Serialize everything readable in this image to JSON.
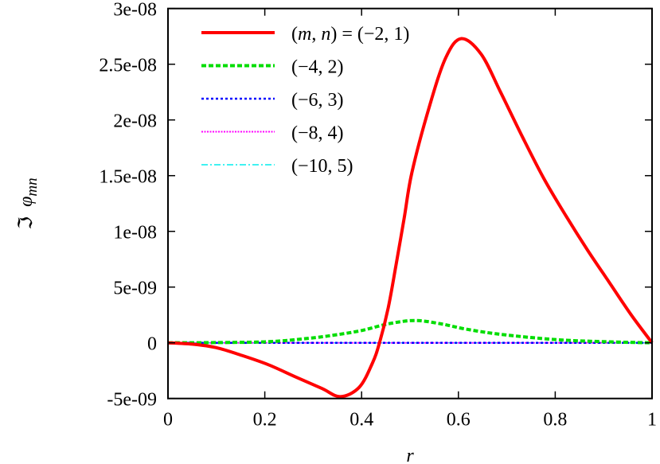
{
  "chart_data": {
    "type": "line",
    "xlabel": "r",
    "ylabel": {
      "prefix": "ℑ",
      "symbol": "φ",
      "subscript": "mn"
    },
    "xlim": [
      0,
      1
    ],
    "ylim": [
      -5e-09,
      3e-08
    ],
    "xticks": [
      {
        "value": 0,
        "label": "0"
      },
      {
        "value": 0.2,
        "label": "0.2"
      },
      {
        "value": 0.4,
        "label": "0.4"
      },
      {
        "value": 0.6,
        "label": "0.6"
      },
      {
        "value": 0.8,
        "label": "0.8"
      },
      {
        "value": 1,
        "label": "1"
      }
    ],
    "yticks": [
      {
        "value": -5e-09,
        "label": "-5e-09"
      },
      {
        "value": 0,
        "label": "0"
      },
      {
        "value": 5e-09,
        "label": "5e-09"
      },
      {
        "value": 1e-08,
        "label": "1e-08"
      },
      {
        "value": 1.5e-08,
        "label": "1.5e-08"
      },
      {
        "value": 2e-08,
        "label": "2e-08"
      },
      {
        "value": 2.5e-08,
        "label": "2.5e-08"
      },
      {
        "value": 3e-08,
        "label": "3e-08"
      }
    ],
    "grid": false,
    "legend_placement": "top-left",
    "series": [
      {
        "name": "(m, n) = (−2, 1)",
        "legend_parts": {
          "open": "(",
          "m": "m",
          "comma": ", ",
          "n": "n",
          "rest": ") = (−2, 1)"
        },
        "color": "#ff0000",
        "style": "solid",
        "x": [
          0,
          0.05,
          0.099,
          0.153,
          0.208,
          0.263,
          0.318,
          0.356,
          0.395,
          0.422,
          0.437,
          0.455,
          0.471,
          0.488,
          0.504,
          0.54,
          0.574,
          0.606,
          0.647,
          0.687,
          0.732,
          0.777,
          0.822,
          0.867,
          0.912,
          0.957,
          1
        ],
        "y": [
          0,
          -1.2e-10,
          -4.3e-10,
          -1.14e-09,
          -1.98e-09,
          -3.05e-09,
          -4.1e-09,
          -4.83e-09,
          -4e-09,
          -1.86e-09,
          0,
          3.14e-09,
          6.95e-09,
          1.12e-08,
          1.53e-08,
          2.12e-08,
          2.56e-08,
          2.73e-08,
          2.59e-08,
          2.25e-08,
          1.85e-08,
          1.47e-08,
          1.14e-08,
          8.3e-09,
          5.4e-09,
          2.5e-09,
          0
        ]
      },
      {
        "name": "(−4, 2)",
        "color": "#00dd00",
        "style": "dashed",
        "x": [
          0,
          0.1,
          0.208,
          0.29,
          0.345,
          0.4,
          0.455,
          0.51,
          0.564,
          0.614,
          0.687,
          0.8,
          0.9,
          1
        ],
        "y": [
          0,
          2e-11,
          1e-10,
          4e-10,
          7e-10,
          1.1e-09,
          1.7e-09,
          2e-09,
          1.7e-09,
          1.24e-09,
          7.6e-10,
          2.9e-10,
          1e-10,
          0
        ]
      },
      {
        "name": "(−6, 3)",
        "color": "#0000ff",
        "style": "dotted",
        "x": [
          0,
          1
        ],
        "y": [
          0,
          0
        ]
      },
      {
        "name": "(−8, 4)",
        "color": "#ff00ff",
        "style": "fine-dotted",
        "x": [
          0,
          1
        ],
        "y": [
          0,
          0
        ]
      },
      {
        "name": "(−10, 5)",
        "color": "#00eeee",
        "style": "dash-dot",
        "x": [
          0,
          1
        ],
        "y": [
          0,
          0
        ]
      }
    ]
  }
}
